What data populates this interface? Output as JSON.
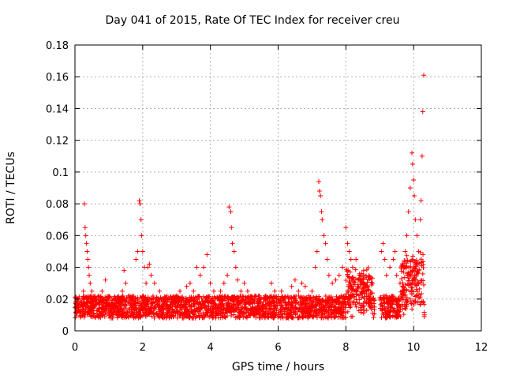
{
  "chart_data": {
    "type": "scatter",
    "title": "Day 041 of 2015, Rate Of TEC Index for receiver creu",
    "xlabel": "GPS time / hours",
    "ylabel": "ROTI / TECUs",
    "xlim": [
      0,
      12
    ],
    "ylim": [
      0,
      0.18
    ],
    "xticks": [
      0,
      2,
      4,
      6,
      8,
      10,
      12
    ],
    "yticks": [
      0,
      0.02,
      0.04,
      0.06,
      0.08,
      0.1,
      0.12,
      0.14,
      0.16,
      0.18
    ],
    "grid": true,
    "marker": "+",
    "color": "#ff0000",
    "data_gap": [
      8.85,
      9.0
    ],
    "series": [
      {
        "name": "ROTI",
        "points": [
          [
            0.05,
            0.015
          ],
          [
            0.1,
            0.02
          ],
          [
            0.15,
            0.012
          ],
          [
            0.2,
            0.018
          ],
          [
            0.25,
            0.025
          ],
          [
            0.28,
            0.08
          ],
          [
            0.3,
            0.065
          ],
          [
            0.32,
            0.06
          ],
          [
            0.34,
            0.055
          ],
          [
            0.36,
            0.05
          ],
          [
            0.38,
            0.045
          ],
          [
            0.4,
            0.04
          ],
          [
            0.42,
            0.035
          ],
          [
            0.45,
            0.03
          ],
          [
            0.5,
            0.025
          ],
          [
            0.6,
            0.02
          ],
          [
            0.7,
            0.018
          ],
          [
            0.8,
            0.025
          ],
          [
            0.9,
            0.032
          ],
          [
            1.0,
            0.02
          ],
          [
            1.1,
            0.015
          ],
          [
            1.2,
            0.02
          ],
          [
            1.3,
            0.018
          ],
          [
            1.4,
            0.025
          ],
          [
            1.45,
            0.038
          ],
          [
            1.5,
            0.03
          ],
          [
            1.6,
            0.022
          ],
          [
            1.7,
            0.02
          ],
          [
            1.8,
            0.045
          ],
          [
            1.85,
            0.05
          ],
          [
            1.9,
            0.082
          ],
          [
            1.92,
            0.08
          ],
          [
            1.95,
            0.07
          ],
          [
            1.97,
            0.06
          ],
          [
            2.0,
            0.05
          ],
          [
            2.05,
            0.04
          ],
          [
            2.1,
            0.03
          ],
          [
            2.15,
            0.04
          ],
          [
            2.2,
            0.042
          ],
          [
            2.25,
            0.035
          ],
          [
            2.35,
            0.03
          ],
          [
            2.5,
            0.025
          ],
          [
            2.6,
            0.02
          ],
          [
            2.7,
            0.018
          ],
          [
            2.8,
            0.015
          ],
          [
            2.9,
            0.02
          ],
          [
            3.0,
            0.022
          ],
          [
            3.1,
            0.025
          ],
          [
            3.2,
            0.02
          ],
          [
            3.3,
            0.028
          ],
          [
            3.4,
            0.03
          ],
          [
            3.5,
            0.025
          ],
          [
            3.6,
            0.04
          ],
          [
            3.7,
            0.035
          ],
          [
            3.8,
            0.04
          ],
          [
            3.9,
            0.048
          ],
          [
            4.0,
            0.03
          ],
          [
            4.1,
            0.025
          ],
          [
            4.2,
            0.02
          ],
          [
            4.3,
            0.025
          ],
          [
            4.4,
            0.03
          ],
          [
            4.5,
            0.035
          ],
          [
            4.55,
            0.078
          ],
          [
            4.6,
            0.075
          ],
          [
            4.62,
            0.065
          ],
          [
            4.65,
            0.055
          ],
          [
            4.7,
            0.05
          ],
          [
            4.75,
            0.04
          ],
          [
            4.8,
            0.032
          ],
          [
            4.9,
            0.025
          ],
          [
            5.0,
            0.03
          ],
          [
            5.1,
            0.025
          ],
          [
            5.2,
            0.02
          ],
          [
            5.3,
            0.018
          ],
          [
            5.4,
            0.015
          ],
          [
            5.5,
            0.012
          ],
          [
            5.6,
            0.015
          ],
          [
            5.7,
            0.02
          ],
          [
            5.8,
            0.03
          ],
          [
            5.9,
            0.025
          ],
          [
            6.0,
            0.02
          ],
          [
            6.1,
            0.025
          ],
          [
            6.2,
            0.018
          ],
          [
            6.3,
            0.02
          ],
          [
            6.4,
            0.028
          ],
          [
            6.5,
            0.032
          ],
          [
            6.6,
            0.025
          ],
          [
            6.7,
            0.03
          ],
          [
            6.8,
            0.028
          ],
          [
            6.9,
            0.02
          ],
          [
            7.0,
            0.025
          ],
          [
            7.1,
            0.04
          ],
          [
            7.15,
            0.05
          ],
          [
            7.2,
            0.094
          ],
          [
            7.22,
            0.088
          ],
          [
            7.25,
            0.085
          ],
          [
            7.28,
            0.075
          ],
          [
            7.3,
            0.07
          ],
          [
            7.35,
            0.06
          ],
          [
            7.4,
            0.055
          ],
          [
            7.45,
            0.045
          ],
          [
            7.5,
            0.035
          ],
          [
            7.6,
            0.03
          ],
          [
            7.7,
            0.032
          ],
          [
            7.8,
            0.035
          ],
          [
            7.9,
            0.04
          ],
          [
            8.0,
            0.065
          ],
          [
            8.05,
            0.055
          ],
          [
            8.1,
            0.05
          ],
          [
            8.15,
            0.045
          ],
          [
            8.2,
            0.04
          ],
          [
            8.3,
            0.045
          ],
          [
            8.4,
            0.035
          ],
          [
            8.5,
            0.03
          ],
          [
            8.6,
            0.025
          ],
          [
            8.7,
            0.02
          ],
          [
            8.8,
            0.015
          ],
          [
            9.05,
            0.05
          ],
          [
            9.1,
            0.055
          ],
          [
            9.15,
            0.045
          ],
          [
            9.2,
            0.035
          ],
          [
            9.3,
            0.04
          ],
          [
            9.4,
            0.045
          ],
          [
            9.45,
            0.05
          ],
          [
            9.5,
            0.035
          ],
          [
            9.6,
            0.03
          ],
          [
            9.7,
            0.04
          ],
          [
            9.75,
            0.05
          ],
          [
            9.8,
            0.06
          ],
          [
            9.85,
            0.075
          ],
          [
            9.9,
            0.09
          ],
          [
            9.95,
            0.112
          ],
          [
            9.97,
            0.105
          ],
          [
            10.0,
            0.095
          ],
          [
            10.02,
            0.085
          ],
          [
            10.05,
            0.07
          ],
          [
            10.1,
            0.06
          ],
          [
            10.15,
            0.05
          ],
          [
            10.2,
            0.07
          ],
          [
            10.22,
            0.082
          ],
          [
            10.25,
            0.11
          ],
          [
            10.27,
            0.138
          ],
          [
            10.3,
            0.161
          ]
        ]
      }
    ]
  }
}
